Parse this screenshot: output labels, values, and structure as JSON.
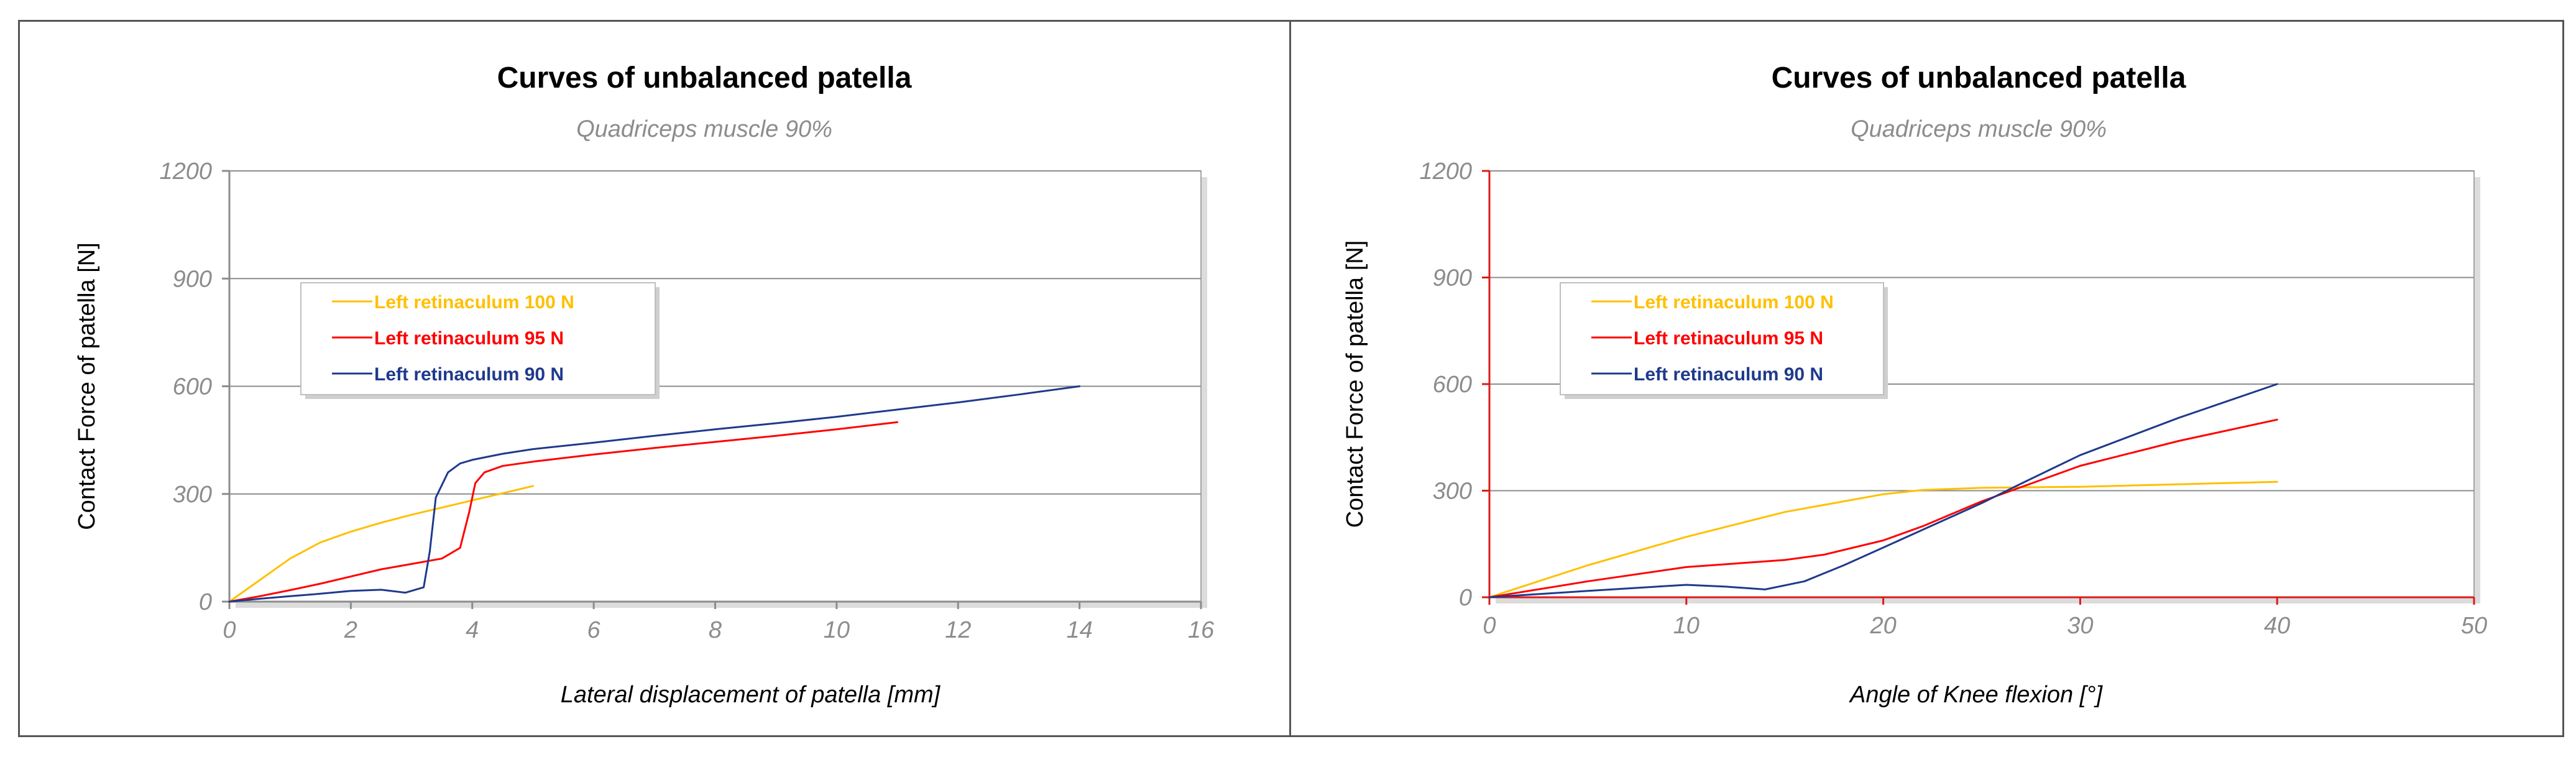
{
  "chart_data": [
    {
      "type": "line",
      "title": "Curves of unbalanced patella",
      "subtitle": "Quadriceps muscle 90%",
      "xlabel": "Lateral displacement of patella  [mm]",
      "ylabel": "Contact Force of patella [N]",
      "xlim": [
        0,
        16
      ],
      "ylim": [
        0,
        1200
      ],
      "xticks": [
        "0",
        "2",
        "4",
        "6",
        "8",
        "10",
        "12",
        "14",
        "16"
      ],
      "yticks": [
        "0",
        "300",
        "600",
        "900",
        "1200"
      ],
      "grid": true,
      "legend_position": "upper-left",
      "series": [
        {
          "name": "Left retinaculum 100 N",
          "color": "#FFC000",
          "x": [
            0,
            0.5,
            1,
            1.5,
            2,
            2.5,
            3,
            3.5,
            4,
            4.5,
            5
          ],
          "y": [
            0,
            60,
            120,
            165,
            195,
            220,
            242,
            262,
            282,
            302,
            322
          ]
        },
        {
          "name": "Left retinaculum 95 N",
          "color": "#FF0000",
          "x": [
            0,
            0.5,
            1,
            1.5,
            2,
            2.5,
            3,
            3.5,
            3.8,
            3.95,
            4.05,
            4.2,
            4.5,
            5,
            6,
            7,
            8,
            9,
            10,
            11
          ],
          "y": [
            0,
            15,
            32,
            50,
            70,
            90,
            105,
            120,
            150,
            250,
            330,
            360,
            378,
            390,
            410,
            428,
            445,
            462,
            480,
            500
          ]
        },
        {
          "name": "Left retinaculum 90 N",
          "color": "#1F3A8C",
          "x": [
            0,
            0.5,
            1,
            1.5,
            2,
            2.5,
            2.9,
            3.2,
            3.3,
            3.4,
            3.6,
            3.8,
            4,
            4.5,
            5,
            6,
            7,
            8,
            9,
            10,
            11,
            12,
            13,
            14
          ],
          "y": [
            0,
            8,
            15,
            22,
            30,
            33,
            25,
            40,
            140,
            290,
            360,
            385,
            395,
            412,
            425,
            443,
            462,
            480,
            497,
            515,
            535,
            555,
            577,
            600
          ]
        }
      ]
    },
    {
      "type": "line",
      "title": "Curves of unbalanced patella",
      "subtitle": "Quadriceps muscle 90%",
      "xlabel": "Angle of Knee flexion [°]",
      "ylabel": "Contact Force of patella [N]",
      "xlim": [
        0,
        50
      ],
      "ylim": [
        0,
        1200
      ],
      "xticks": [
        "0",
        "10",
        "20",
        "30",
        "40",
        "50"
      ],
      "yticks": [
        "0",
        "300",
        "600",
        "900",
        "1200"
      ],
      "grid": true,
      "legend_position": "upper-left",
      "series": [
        {
          "name": "Left retinaculum 100 N",
          "color": "#FFC000",
          "x": [
            0,
            5,
            10,
            15,
            20,
            22,
            25,
            30,
            35,
            40
          ],
          "y": [
            0,
            90,
            170,
            240,
            290,
            302,
            308,
            311,
            318,
            325
          ]
        },
        {
          "name": "Left retinaculum 95 N",
          "color": "#FF0000",
          "x": [
            0,
            5,
            10,
            15,
            17,
            20,
            22,
            25,
            28,
            30,
            35,
            40
          ],
          "y": [
            0,
            45,
            85,
            105,
            120,
            160,
            200,
            270,
            330,
            370,
            440,
            500
          ]
        },
        {
          "name": "Left retinaculum 90 N",
          "color": "#1F3A8C",
          "x": [
            0,
            5,
            10,
            12,
            14,
            16,
            18,
            20,
            22,
            25,
            27,
            30,
            35,
            40
          ],
          "y": [
            0,
            18,
            35,
            30,
            22,
            45,
            90,
            140,
            190,
            265,
            320,
            400,
            505,
            600
          ]
        }
      ]
    }
  ]
}
